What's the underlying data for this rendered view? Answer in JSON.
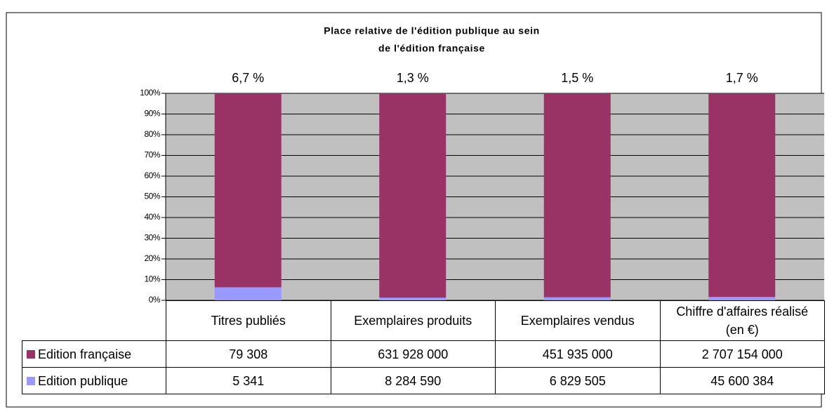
{
  "chart_data": {
    "type": "stacked_percent_bar",
    "title": [
      "Place relative de l'édition publique au sein",
      "de l'édition française"
    ],
    "categories": [
      "Titres publiés",
      "Exemplaires produits",
      "Exemplaires vendus",
      "Chiffre d'affaires réalisé (en €)"
    ],
    "annotations": [
      "6,7 %",
      "1,3 %",
      "1,5 %",
      "1,7 %"
    ],
    "series": [
      {
        "name": "Edition française",
        "color": "#993366",
        "values": [
          79308,
          631928000,
          451935000,
          2707154000
        ],
        "value_labels": [
          "79 308",
          "631 928 000",
          "451 935 000",
          "2 707 154 000"
        ]
      },
      {
        "name": "Edition publique",
        "color": "#9999ff",
        "values": [
          5341,
          8284590,
          6829505,
          45600384
        ],
        "value_labels": [
          "5 341",
          "8 284 590",
          "6 829 505",
          "45 600 384"
        ]
      }
    ],
    "ylim": [
      0,
      100
    ],
    "yticks": [
      {
        "value": 0,
        "label": "0%"
      },
      {
        "value": 10,
        "label": "10%"
      },
      {
        "value": 20,
        "label": "20%"
      },
      {
        "value": 30,
        "label": "30%"
      },
      {
        "value": 40,
        "label": "40%"
      },
      {
        "value": 50,
        "label": "50%"
      },
      {
        "value": 60,
        "label": "60%"
      },
      {
        "value": 70,
        "label": "70%"
      },
      {
        "value": 80,
        "label": "80%"
      },
      {
        "value": 90,
        "label": "90%"
      },
      {
        "value": 100,
        "label": "100%"
      }
    ],
    "grid": true,
    "plot_background": "#c0c0c0"
  }
}
